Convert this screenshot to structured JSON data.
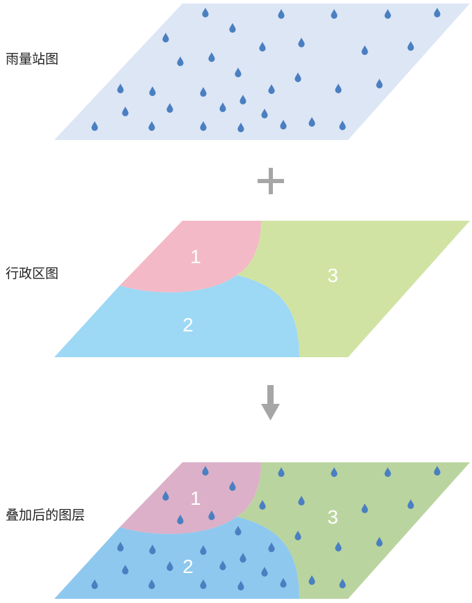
{
  "layers": {
    "rain": {
      "label": "雨量站图"
    },
    "admin": {
      "label": "行政区图",
      "regions": [
        "1",
        "2",
        "3"
      ]
    },
    "overlay": {
      "label": "叠加后的图层",
      "regions": [
        "1",
        "2",
        "3"
      ]
    }
  },
  "operators": {
    "plus": "plus-icon",
    "arrow": "arrow-down-icon"
  },
  "colors": {
    "rain_plane": "#dde6f5",
    "drop": "#4a7fc1",
    "region_1": "#f4b9c6",
    "region_2": "#9dd8f5",
    "region_3": "#d1e3a3",
    "overlay_1": "#dcb0c8",
    "overlay_2": "#8ec8ee",
    "overlay_3": "#bad49f",
    "operator": "#a6a6a6"
  }
}
